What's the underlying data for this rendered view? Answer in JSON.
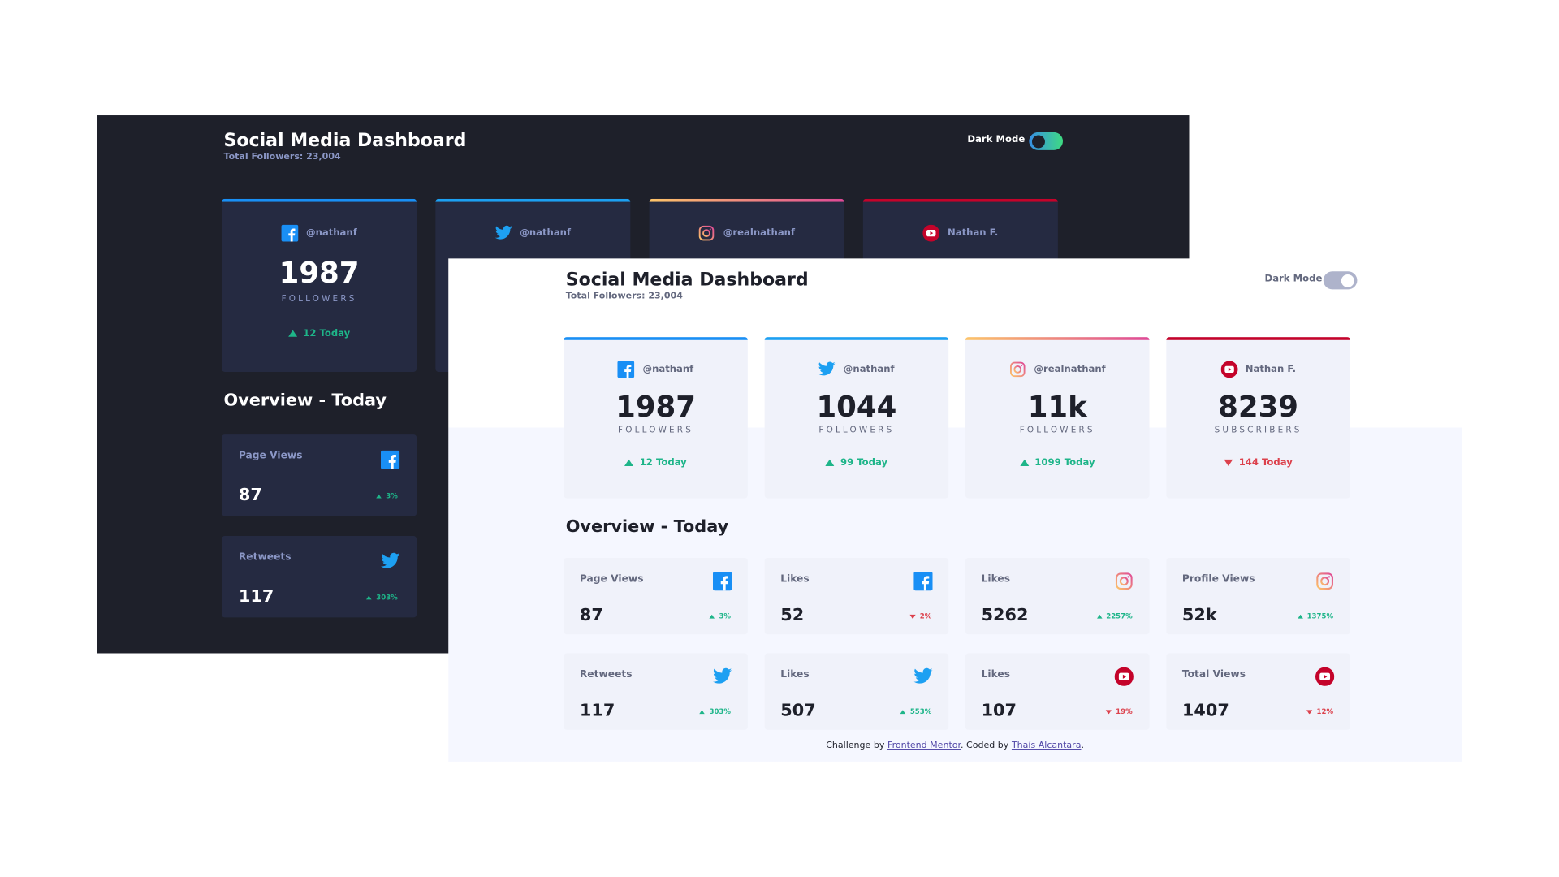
{
  "dark": {
    "title": "Social Media Dashboard",
    "total_followers": "Total Followers: 23,004",
    "dark_mode": "Dark Mode",
    "cards": [
      {
        "handle": "@nathanf",
        "count": "1987",
        "label": "FOLLOWERS",
        "today": "12 Today"
      },
      {
        "handle": "@nathanf"
      },
      {
        "handle": "@realnathanf"
      },
      {
        "handle": "Nathan F."
      }
    ],
    "overview_title": "Overview - Today",
    "overview": [
      {
        "label": "Page Views",
        "value": "87",
        "change": "3%"
      },
      {
        "label": "Retweets",
        "value": "117",
        "change": "303%"
      }
    ]
  },
  "light": {
    "title": "Social Media Dashboard",
    "total_followers": "Total Followers: 23,004",
    "dark_mode": "Dark Mode",
    "cards": [
      {
        "handle": "@nathanf",
        "count": "1987",
        "label": "FOLLOWERS",
        "today": "12 Today"
      },
      {
        "handle": "@nathanf",
        "count": "1044",
        "label": "FOLLOWERS",
        "today": "99 Today"
      },
      {
        "handle": "@realnathanf",
        "count": "11k",
        "label": "FOLLOWERS",
        "today": "1099 Today"
      },
      {
        "handle": "Nathan F.",
        "count": "8239",
        "label": "SUBSCRIBERS",
        "today": "144 Today"
      }
    ],
    "overview_title": "Overview - Today",
    "overview": [
      {
        "label": "Page Views",
        "value": "87",
        "change": "3%"
      },
      {
        "label": "Likes",
        "value": "52",
        "change": "2%"
      },
      {
        "label": "Likes",
        "value": "5262",
        "change": "2257%"
      },
      {
        "label": "Profile Views",
        "value": "52k",
        "change": "1375%"
      },
      {
        "label": "Retweets",
        "value": "117",
        "change": "303%"
      },
      {
        "label": "Likes",
        "value": "507",
        "change": "553%"
      },
      {
        "label": "Likes",
        "value": "107",
        "change": "19%"
      },
      {
        "label": "Total Views",
        "value": "1407",
        "change": "12%"
      }
    ],
    "footer": {
      "prefix": "Challenge by",
      "link1": "Frontend Mentor",
      "middle": ". Coded by",
      "link2": "Thaís Alcantara",
      "suffix": "."
    }
  }
}
